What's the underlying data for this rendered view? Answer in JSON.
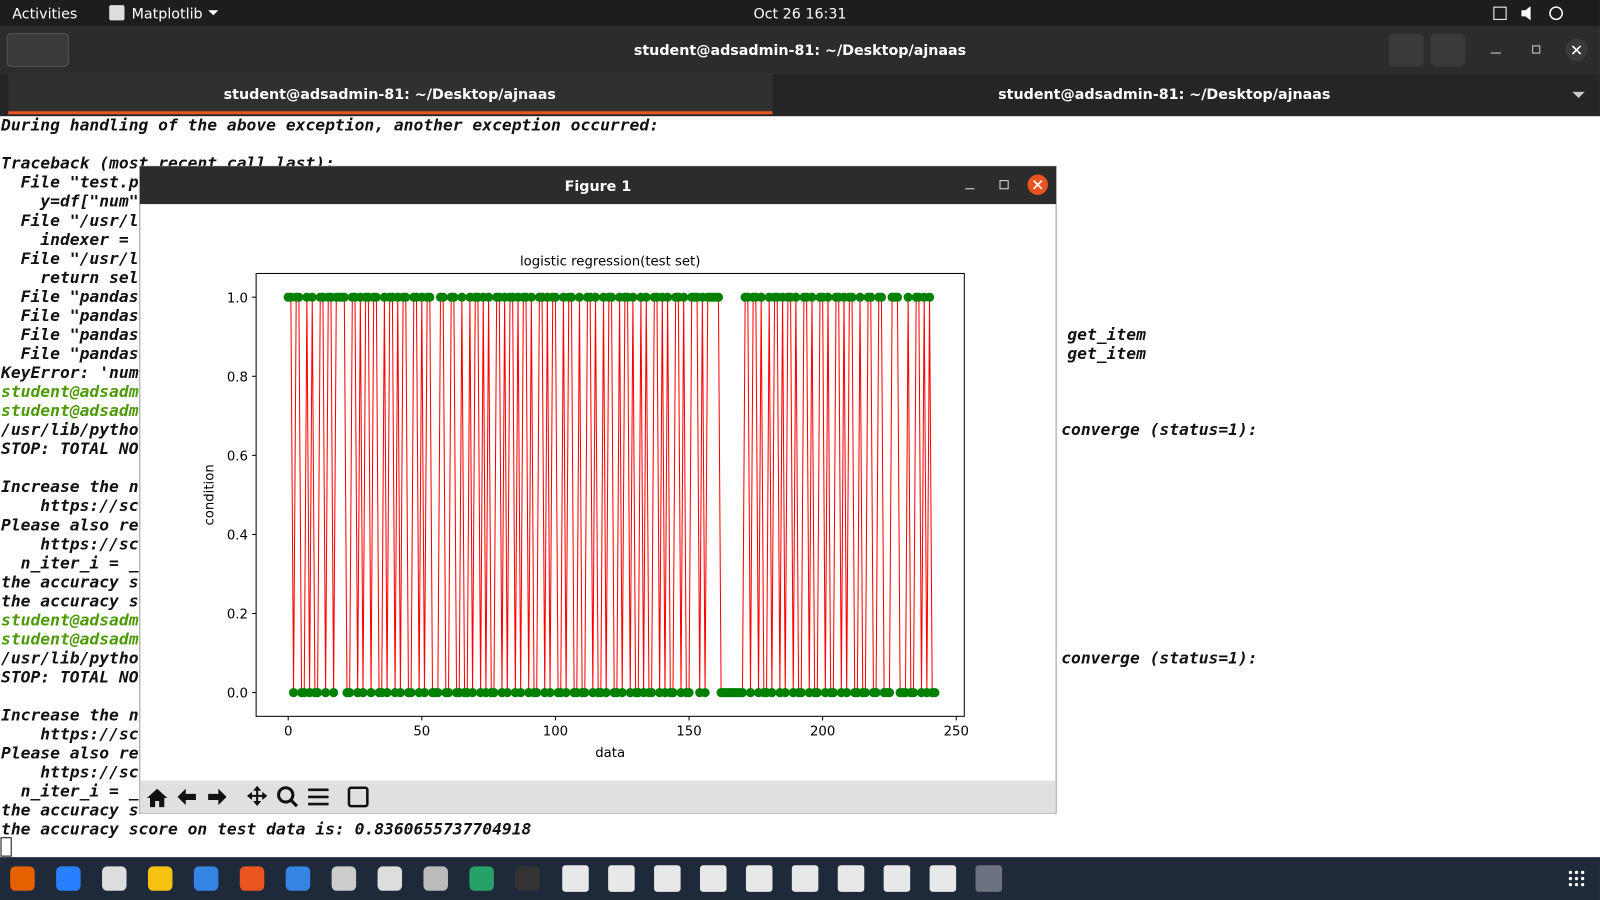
{
  "topbar": {
    "activities": "Activities",
    "app": "Matplotlib",
    "clock": "Oct 26  16:31"
  },
  "terminal": {
    "title": "student@adsadmin-81: ~/Desktop/ajnaas",
    "tabs": [
      "student@adsadmin-81: ~/Desktop/ajnaas",
      "student@adsadmin-81: ~/Desktop/ajnaas"
    ],
    "lines": [
      {
        "text": "During handling of the above exception, another exception occurred:"
      },
      {
        "text": "Traceback (most recent call last):"
      },
      {
        "text": "  File \"test.p"
      },
      {
        "text": "    y=df[\"num\""
      },
      {
        "text": "  File \"/usr/l"
      },
      {
        "text": "    indexer = "
      },
      {
        "text": "  File \"/usr/l"
      },
      {
        "text": "    return sel"
      },
      {
        "text": "  File \"pandas"
      },
      {
        "text": "  File \"pandas"
      },
      {
        "text": "  File \"pandas",
        "right": "get_item"
      },
      {
        "text": "  File \"pandas",
        "right": "get_item"
      },
      {
        "text": "KeyError: 'num"
      },
      {
        "text": "student@adsadm"
      },
      {
        "text": "student@adsadm"
      },
      {
        "text": "/usr/lib/pytho",
        "right": "converge (status=1):"
      },
      {
        "text": "STOP: TOTAL NO"
      },
      {
        "text": "Increase the n"
      },
      {
        "text": "    https://sc"
      },
      {
        "text": "Please also re"
      },
      {
        "text": "    https://sc"
      },
      {
        "text": "  n_iter_i = _"
      },
      {
        "text": "the accuracy s"
      },
      {
        "text": "the accuracy s"
      },
      {
        "text": "student@adsadm"
      },
      {
        "text": "student@adsadm"
      },
      {
        "text": "/usr/lib/pytho",
        "right": "converge (status=1):"
      },
      {
        "text": "STOP: TOTAL NO"
      },
      {
        "text": "Increase the n"
      },
      {
        "text": "    https://sc"
      },
      {
        "text": "Please also re"
      },
      {
        "text": "    https://sc"
      },
      {
        "text": "  n_iter_i = _"
      },
      {
        "text": "the accuracy s"
      },
      {
        "text": "the accuracy score on test data is: 0.8360655737704918"
      }
    ]
  },
  "window": {
    "title": "Figure 1"
  },
  "chart_data": {
    "type": "line",
    "title": "logistic regression(test set)",
    "x_label": "data",
    "y_label": "condition",
    "line_color": "#ff0000",
    "marker_color": "#008000",
    "xlim": [
      -12,
      253
    ],
    "ylim": [
      -0.06,
      1.06
    ],
    "xticks": [
      0,
      50,
      100,
      150,
      200,
      250
    ],
    "yticks": [
      {
        "value": 0,
        "label": "0.0"
      },
      {
        "value": 0.2,
        "label": "0.2"
      },
      {
        "value": 0.4,
        "label": "0.4"
      },
      {
        "value": 0.6,
        "label": "0.6"
      },
      {
        "value": 0.8,
        "label": "0.8"
      },
      {
        "value": 1,
        "label": "1.0"
      }
    ],
    "values": [
      1,
      1,
      0,
      1,
      1,
      0,
      0,
      1,
      0,
      1,
      0,
      0,
      1,
      1,
      0,
      1,
      1,
      0,
      1,
      1,
      1,
      1,
      0,
      0,
      1,
      1,
      0,
      1,
      0,
      1,
      1,
      0,
      1,
      1,
      0,
      0,
      1,
      0,
      1,
      1,
      0,
      1,
      0,
      1,
      1,
      0,
      0,
      1,
      1,
      0,
      1,
      0,
      1,
      1,
      0,
      0,
      0,
      1,
      1,
      0,
      0,
      1,
      1,
      0,
      0,
      1,
      0,
      0,
      1,
      0,
      1,
      1,
      0,
      1,
      0,
      1,
      0,
      0,
      1,
      1,
      0,
      1,
      0,
      1,
      1,
      0,
      1,
      0,
      1,
      1,
      0,
      1,
      0,
      0,
      1,
      1,
      0,
      1,
      0,
      1,
      1,
      0,
      0,
      1,
      0,
      1,
      1,
      0,
      0,
      1,
      0,
      0,
      1,
      1,
      0,
      1,
      0,
      0,
      1,
      0,
      1,
      1,
      0,
      0,
      1,
      0,
      1,
      1,
      0,
      1,
      0,
      0,
      1,
      0,
      1,
      0,
      0,
      1,
      1,
      0,
      1,
      0,
      1,
      0,
      0,
      1,
      1,
      0,
      1,
      0,
      0,
      1,
      1,
      1,
      0,
      1,
      0,
      1,
      1,
      1,
      1,
      1,
      0,
      0,
      0,
      0,
      0,
      0,
      0,
      0,
      0,
      1,
      1,
      0,
      1,
      1,
      0,
      1,
      0,
      0,
      1,
      0,
      1,
      1,
      0,
      1,
      0,
      1,
      1,
      0,
      1,
      0,
      0,
      1,
      1,
      0,
      1,
      0,
      0,
      1,
      1,
      0,
      1,
      0,
      0,
      1,
      1,
      0,
      1,
      0,
      1,
      1,
      0,
      0,
      1,
      0,
      0,
      1,
      1,
      0,
      0,
      1,
      1,
      0,
      0,
      0,
      1,
      1,
      1,
      0,
      0,
      0,
      1,
      0,
      0,
      1,
      1,
      0,
      1,
      0,
      1,
      0,
      0
    ]
  }
}
